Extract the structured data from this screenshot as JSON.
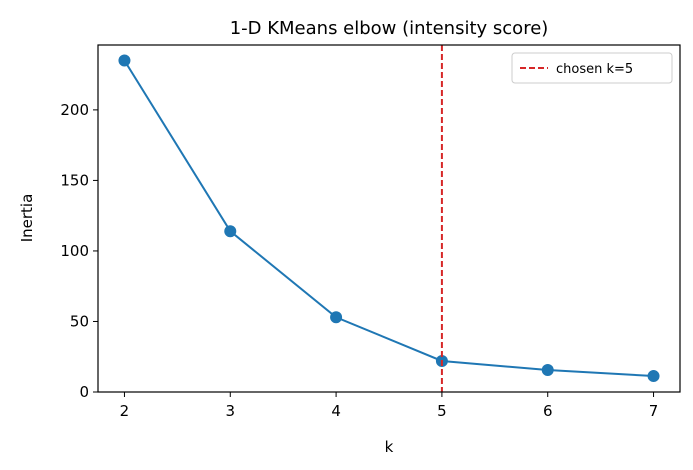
{
  "chart_data": {
    "type": "line",
    "title": "1-D KMeans elbow (intensity score)",
    "xlabel": "k",
    "ylabel": "Inertia",
    "x": [
      2,
      3,
      4,
      5,
      6,
      7
    ],
    "series": [
      {
        "color": "#1f77b4",
        "values": [
          235,
          114,
          53,
          22,
          15.6,
          11.3
        ]
      }
    ],
    "vline": {
      "x": 5,
      "label": "chosen k=5",
      "color": "#d62728"
    },
    "legend": "upper right",
    "xlim": [
      1.75,
      7.25
    ],
    "xticks": [
      2,
      3,
      4,
      5,
      6,
      7
    ],
    "ylim": [
      0,
      246
    ],
    "yticks": [
      0,
      50,
      100,
      150,
      200
    ]
  }
}
